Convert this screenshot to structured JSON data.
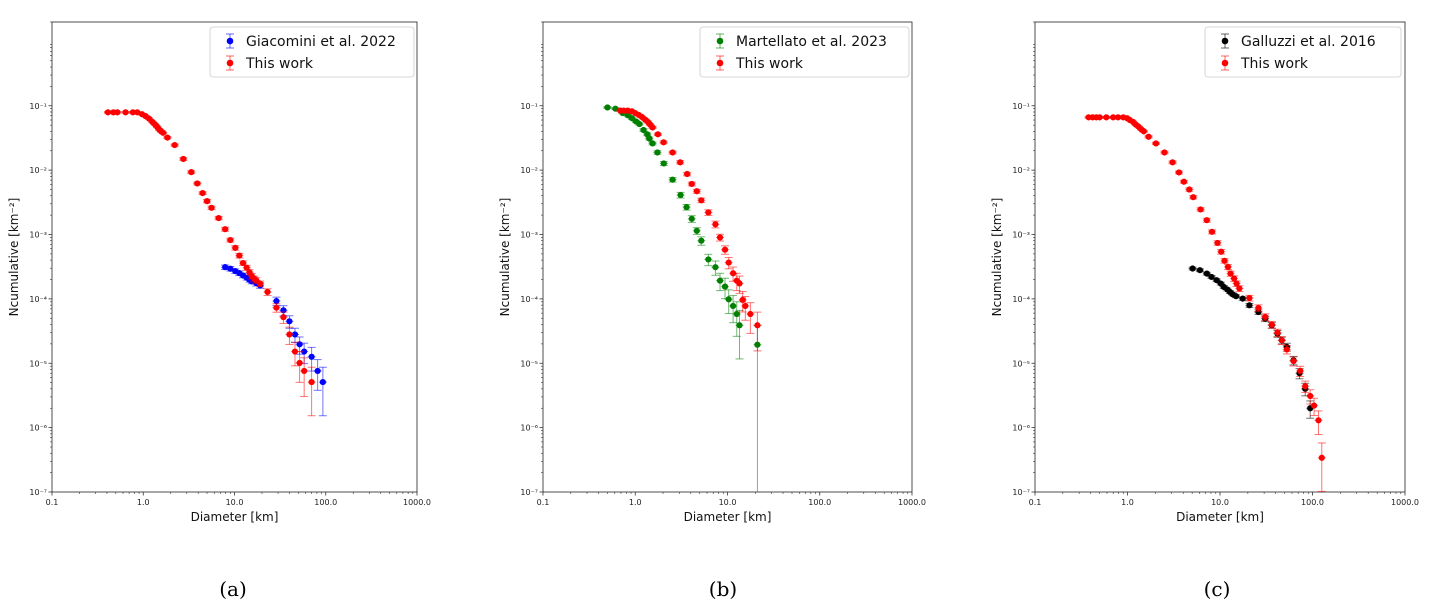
{
  "chart_data": [
    {
      "type": "scatter",
      "caption": "(a)",
      "xlabel": "Diameter [km]",
      "ylabel": "Ncumulative [km⁻²]",
      "xscale": "log",
      "yscale": "log",
      "xlim": [
        0.1,
        1000
      ],
      "ylim": [
        1e-07,
        2
      ],
      "xticks": [
        0.1,
        1,
        10,
        100,
        1000
      ],
      "xtick_labels": [
        "0.1",
        "1.0",
        "10.0",
        "100.0",
        "1000.0"
      ],
      "yticks": [
        1e-07,
        1e-06,
        1e-05,
        0.0001,
        0.001,
        0.01,
        0.1
      ],
      "ytick_labels": [
        "10⁻⁷",
        "10⁻⁶",
        "10⁻⁵",
        "10⁻⁴",
        "10⁻³",
        "10⁻²",
        "10⁻¹"
      ],
      "legend_position": "top-right",
      "series": [
        {
          "name": "Giacomini et al. 2022",
          "color": "#0000ff",
          "x": [
            7.9,
            9.0,
            10.2,
            11.3,
            12.4,
            13.6,
            14.6,
            15.5,
            17.3,
            19.1,
            28.8,
            34.4,
            40,
            46,
            51.7,
            58,
            70,
            81.5,
            93
          ],
          "y": [
            0.000311,
            0.000294,
            0.00027,
            0.000251,
            0.000231,
            0.000213,
            0.000198,
            0.000187,
            0.000176,
            0.000162,
            9.25e-05,
            6.64e-05,
            4.48e-05,
            2.8e-05,
            1.97e-05,
            1.52e-05,
            1.26e-05,
            7.6e-06,
            5.1e-06
          ],
          "yerr_rel": [
            0.08,
            0.08,
            0.08,
            0.08,
            0.08,
            0.08,
            0.08,
            0.08,
            0.1,
            0.1,
            0.15,
            0.18,
            0.22,
            0.25,
            0.3,
            0.35,
            0.4,
            0.5,
            0.7
          ]
        },
        {
          "name": "This work",
          "color": "#ff0000",
          "x": [
            0.41,
            0.47,
            0.52,
            0.64,
            0.77,
            0.86,
            0.97,
            1.06,
            1.16,
            1.26,
            1.35,
            1.42,
            1.49,
            1.57,
            1.65,
            1.84,
            2.21,
            2.75,
            3.36,
            3.91,
            4.47,
            5.0,
            5.6,
            6.7,
            7.9,
            9.0,
            10.2,
            11.3,
            12.4,
            13.6,
            14.6,
            15.5,
            16.5,
            17.3,
            19.1,
            23.0,
            28.8,
            34.4,
            40,
            46,
            51.7,
            58,
            70
          ],
          "y": [
            0.079,
            0.079,
            0.079,
            0.079,
            0.079,
            0.079,
            0.074,
            0.069,
            0.063,
            0.056,
            0.051,
            0.047,
            0.043,
            0.04,
            0.038,
            0.032,
            0.0245,
            0.0149,
            0.0093,
            0.0062,
            0.0044,
            0.0033,
            0.0026,
            0.0018,
            0.00121,
            0.00082,
            0.00062,
            0.00047,
            0.00036,
            0.000305,
            0.00026,
            0.000226,
            0.000205,
            0.000194,
            0.000172,
            0.000128,
            7.3e-05,
            5.2e-05,
            2.8e-05,
            1.52e-05,
            1.01e-05,
            7.6e-06,
            5.1e-06
          ],
          "yerr_rel": [
            0.03,
            0.03,
            0.03,
            0.03,
            0.03,
            0.03,
            0.03,
            0.03,
            0.03,
            0.03,
            0.03,
            0.03,
            0.03,
            0.03,
            0.03,
            0.04,
            0.04,
            0.05,
            0.05,
            0.05,
            0.05,
            0.06,
            0.06,
            0.06,
            0.07,
            0.07,
            0.08,
            0.08,
            0.08,
            0.09,
            0.09,
            0.1,
            0.1,
            0.1,
            0.1,
            0.12,
            0.15,
            0.2,
            0.3,
            0.4,
            0.5,
            0.6,
            0.7
          ]
        }
      ]
    },
    {
      "type": "scatter",
      "caption": "(b)",
      "xlabel": "Diameter [km]",
      "ylabel": "Ncumulative [km⁻²]",
      "xscale": "log",
      "yscale": "log",
      "xlim": [
        0.1,
        1000
      ],
      "ylim": [
        1e-07,
        2
      ],
      "xticks": [
        0.1,
        1,
        10,
        100,
        1000
      ],
      "xtick_labels": [
        "0.1",
        "1.0",
        "10.0",
        "100.0",
        "1000.0"
      ],
      "yticks": [
        1e-07,
        1e-06,
        1e-05,
        0.0001,
        0.001,
        0.01,
        0.1
      ],
      "ytick_labels": [
        "10⁻⁷",
        "10⁻⁶",
        "10⁻⁵",
        "10⁻⁴",
        "10⁻³",
        "10⁻²",
        "10⁻¹"
      ],
      "legend_position": "top-right",
      "series": [
        {
          "name": "Martellato et al. 2023",
          "color": "#008000",
          "x": [
            0.5,
            0.61,
            0.73,
            0.83,
            0.92,
            1.02,
            1.11,
            1.23,
            1.35,
            1.42,
            1.54,
            1.74,
            2.04,
            2.54,
            3.1,
            3.6,
            4.1,
            4.65,
            5.2,
            6.2,
            7.4,
            8.3,
            9.4,
            10.3,
            11.5,
            12.6,
            13.5,
            21.1
          ],
          "y": [
            0.094,
            0.09,
            0.077,
            0.071,
            0.064,
            0.057,
            0.052,
            0.042,
            0.036,
            0.031,
            0.026,
            0.0188,
            0.0127,
            0.0071,
            0.0041,
            0.00266,
            0.00175,
            0.00114,
            0.0008,
            0.00041,
            0.00031,
            0.000192,
            0.000155,
            9.86e-05,
            7.76e-05,
            5.82e-05,
            3.89e-05,
            1.94e-05
          ],
          "yerr_rel": [
            0.03,
            0.03,
            0.03,
            0.03,
            0.04,
            0.04,
            0.04,
            0.05,
            0.05,
            0.05,
            0.05,
            0.06,
            0.07,
            0.08,
            0.1,
            0.1,
            0.12,
            0.12,
            0.15,
            0.2,
            0.25,
            0.3,
            0.35,
            0.4,
            0.45,
            0.55,
            0.7,
            1.0
          ]
        },
        {
          "name": "This work",
          "color": "#ff0000",
          "x": [
            0.69,
            0.75,
            0.83,
            0.92,
            1.0,
            1.09,
            1.18,
            1.28,
            1.37,
            1.45,
            1.54,
            1.76,
            2.03,
            2.54,
            3.07,
            3.65,
            4.1,
            4.65,
            5.2,
            6.2,
            7.4,
            8.3,
            9.4,
            10.3,
            11.5,
            12.6,
            13.5,
            14.6,
            15.6,
            17.7,
            21.1
          ],
          "y": [
            0.084,
            0.084,
            0.084,
            0.082,
            0.077,
            0.072,
            0.067,
            0.061,
            0.056,
            0.051,
            0.046,
            0.036,
            0.027,
            0.0188,
            0.0132,
            0.0087,
            0.0061,
            0.0047,
            0.0034,
            0.0022,
            0.00144,
            0.0009,
            0.00058,
            0.000366,
            0.00025,
            0.000192,
            0.000174,
            9.62e-05,
            7.76e-05,
            5.82e-05,
            3.89e-05
          ],
          "yerr_rel": [
            0.03,
            0.03,
            0.03,
            0.03,
            0.03,
            0.03,
            0.03,
            0.03,
            0.03,
            0.03,
            0.04,
            0.04,
            0.05,
            0.05,
            0.06,
            0.06,
            0.07,
            0.07,
            0.08,
            0.1,
            0.12,
            0.12,
            0.15,
            0.2,
            0.25,
            0.3,
            0.3,
            0.35,
            0.4,
            0.5,
            0.6
          ]
        }
      ]
    },
    {
      "type": "scatter",
      "caption": "(c)",
      "xlabel": "Diameter [km]",
      "ylabel": "Ncumulative [km⁻²]",
      "xscale": "log",
      "yscale": "log",
      "xlim": [
        0.1,
        1000
      ],
      "ylim": [
        1e-07,
        2
      ],
      "xticks": [
        0.1,
        1,
        10,
        100,
        1000
      ],
      "xtick_labels": [
        "0.1",
        "1.0",
        "10.0",
        "100.0",
        "1000.0"
      ],
      "yticks": [
        1e-07,
        1e-06,
        1e-05,
        0.0001,
        0.001,
        0.01,
        0.1
      ],
      "ytick_labels": [
        "10⁻⁷",
        "10⁻⁶",
        "10⁻⁵",
        "10⁻⁴",
        "10⁻³",
        "10⁻²",
        "10⁻¹"
      ],
      "legend_position": "top-right",
      "series": [
        {
          "name": "Galluzzi et al. 2016",
          "color": "#000000",
          "x": [
            5.06,
            6.07,
            7.2,
            8.1,
            9.2,
            10.2,
            11.0,
            12.0,
            12.8,
            13.7,
            14.9,
            17.6,
            20.8,
            26,
            30.8,
            36.3,
            41.8,
            46.6,
            52.8,
            62.4,
            72.4,
            83.4,
            94.4
          ],
          "y": [
            0.000296,
            0.000279,
            0.000247,
            0.000219,
            0.000195,
            0.000173,
            0.000153,
            0.00014,
            0.000128,
            0.000118,
            0.00011,
            0.000101,
            7.94e-05,
            6.25e-05,
            4.93e-05,
            3.89e-05,
            2.88e-05,
            2.27e-05,
            1.79e-05,
            1.11e-05,
            7e-06,
            4e-06,
            2e-06
          ],
          "yerr_rel": [
            0.05,
            0.05,
            0.05,
            0.05,
            0.05,
            0.05,
            0.05,
            0.05,
            0.05,
            0.05,
            0.05,
            0.06,
            0.07,
            0.08,
            0.1,
            0.1,
            0.12,
            0.12,
            0.14,
            0.15,
            0.18,
            0.22,
            0.3
          ]
        },
        {
          "name": "This work",
          "color": "#ff0000",
          "x": [
            0.38,
            0.42,
            0.46,
            0.5,
            0.59,
            0.7,
            0.79,
            0.9,
            0.99,
            1.06,
            1.15,
            1.23,
            1.32,
            1.41,
            1.5,
            1.69,
            2.03,
            2.51,
            3.07,
            3.6,
            4.07,
            4.66,
            5.14,
            6.17,
            7.2,
            8.2,
            9.4,
            10.3,
            11.2,
            12.2,
            13.0,
            14.2,
            15.1,
            16.2,
            20.8,
            26,
            30.8,
            36.3,
            41.8,
            46.6,
            52.8,
            62.4,
            73.6,
            83.4,
            94.4,
            104,
            116,
            126
          ],
          "y": [
            0.066,
            0.066,
            0.066,
            0.066,
            0.066,
            0.066,
            0.066,
            0.066,
            0.064,
            0.06,
            0.056,
            0.051,
            0.047,
            0.043,
            0.04,
            0.033,
            0.026,
            0.0188,
            0.0132,
            0.0092,
            0.0066,
            0.005,
            0.0038,
            0.00245,
            0.00167,
            0.0011,
            0.00074,
            0.00054,
            0.00039,
            0.000313,
            0.000247,
            0.000207,
            0.000173,
            0.000145,
            0.000103,
            7.22e-05,
            5.24e-05,
            3.98e-05,
            2.99e-05,
            2.27e-05,
            1.64e-05,
            1.08e-05,
            7.6e-06,
            4.4e-06,
            3.1e-06,
            2.2e-06,
            1.3e-06,
            3.4e-07
          ],
          "yerr_rel": [
            0.03,
            0.03,
            0.03,
            0.03,
            0.03,
            0.03,
            0.03,
            0.03,
            0.03,
            0.03,
            0.03,
            0.03,
            0.03,
            0.03,
            0.03,
            0.04,
            0.04,
            0.05,
            0.05,
            0.05,
            0.05,
            0.06,
            0.06,
            0.06,
            0.07,
            0.07,
            0.08,
            0.08,
            0.08,
            0.09,
            0.09,
            0.1,
            0.1,
            0.1,
            0.1,
            0.12,
            0.12,
            0.12,
            0.13,
            0.14,
            0.15,
            0.16,
            0.18,
            0.2,
            0.25,
            0.3,
            0.4,
            0.7
          ]
        }
      ]
    }
  ]
}
